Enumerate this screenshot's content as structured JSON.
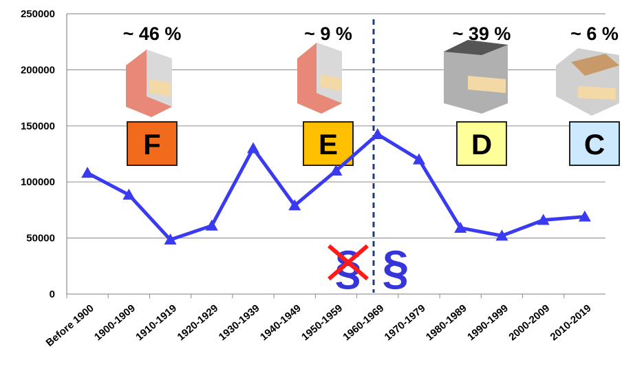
{
  "chart_data": {
    "type": "line",
    "categories": [
      "Before 1900",
      "1900-1909",
      "1910-1919",
      "1920-1929",
      "1930-1939",
      "1940-1949",
      "1950-1959",
      "1960-1969",
      "1970-1979",
      "1980-1989",
      "1990-1999",
      "2000-2009",
      "2010-2019"
    ],
    "values": [
      108000,
      88500,
      48500,
      61000,
      130000,
      79000,
      110000,
      142500,
      120000,
      59000,
      52000,
      66000,
      69000
    ],
    "color": "#3a3af0",
    "ylim": [
      0,
      250000
    ],
    "yticks": [
      0,
      50000,
      100000,
      150000,
      200000,
      250000
    ],
    "grid": true,
    "annotations": [
      {
        "share": "~ 46 %",
        "label": "F",
        "color": "#f26b1d"
      },
      {
        "share": "~ 9 %",
        "label": "E",
        "color": "#ffc000"
      },
      {
        "share": "~ 39 %",
        "label": "D",
        "color": "#ffff99"
      },
      {
        "share": "~ 6 %",
        "label": "C",
        "color": "#cce9ff"
      }
    ],
    "markers": [
      "§",
      "§"
    ]
  }
}
